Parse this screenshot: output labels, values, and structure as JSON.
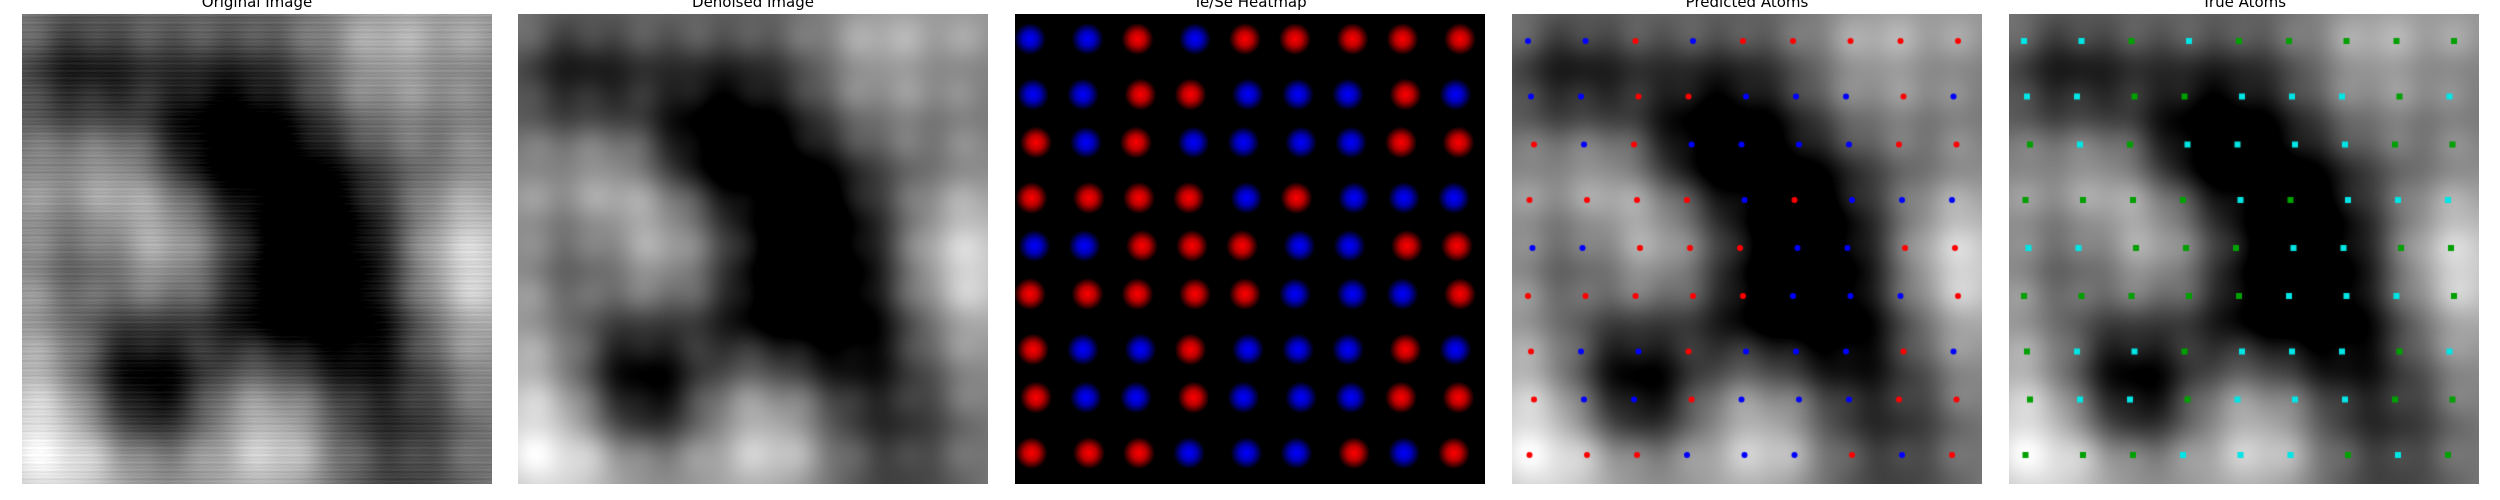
{
  "panels": [
    {
      "key": "original",
      "title": "Original Image"
    },
    {
      "key": "denoised",
      "title": "Denoised Image"
    },
    {
      "key": "heatmap",
      "title": "Te/Se Heatmap"
    },
    {
      "key": "predicted",
      "title": "Predicted Atoms"
    },
    {
      "key": "true",
      "title": "True Atoms"
    }
  ],
  "colors": {
    "te_heat": "#ff0000",
    "se_heat": "#0000ff",
    "pred_te": "#ff0000",
    "pred_se": "#0000ff",
    "true_te": "#00a000",
    "true_se": "#00e5e5"
  },
  "lattice": {
    "rows": 9,
    "cols": 9,
    "species": [
      "SSTSTTTTT",
      "SSTTSSSTS",
      "TSTSSSSTT",
      "TTTTSTSSS",
      "SSTTTSSTT",
      "TTTTTSSST",
      "TSSTSSSTS",
      "TSSTSSSTT",
      "TTTSSSTST"
    ]
  }
}
